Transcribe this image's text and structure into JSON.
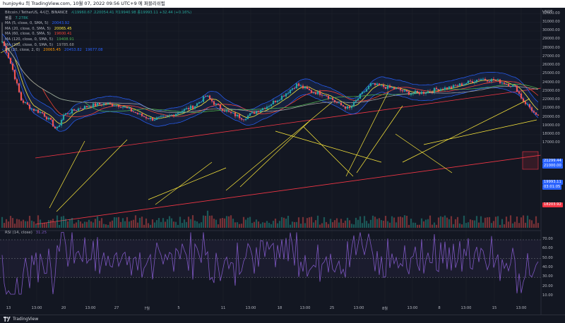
{
  "header": {
    "title": "hunjoy4u 의 TradingView.com, 10월 07, 2022 09:56 UTC+9 에 퍼블리쉬됨"
  },
  "symbol_line": {
    "name": "Bitcoin / TetherUS, 4시간, BINANCE",
    "ohlc": "시19960.67 고20054.41 저19940.98 종19993.11 +32.44 (+0.16%)"
  },
  "indicators": [
    {
      "name": "볼륨",
      "values": [
        "7.278K"
      ],
      "colors": [
        "#26a69a"
      ]
    },
    {
      "name": "MA (5, close, 0, SMA, 5)",
      "values": [
        "20043.92"
      ],
      "colors": [
        "#2962ff"
      ]
    },
    {
      "name": "MA (20, close, 0, SMA, 5)",
      "values": [
        "20065.45"
      ],
      "colors": [
        "#ffeb3b"
      ]
    },
    {
      "name": "MA (60, close, 0, SMA, 5)",
      "values": [
        "19600.41"
      ],
      "colors": [
        "#f44336"
      ]
    },
    {
      "name": "MA (120, close, 0, SMA, 5)",
      "values": [
        "19408.91"
      ],
      "colors": [
        "#4caf50"
      ]
    },
    {
      "name": "MA (200, close, 0, SMA, 5)",
      "values": [
        "19785.68"
      ],
      "colors": [
        "#9e9e9e"
      ]
    },
    {
      "name": "BB (20, close, 2, 0)",
      "values": [
        "20065.45",
        "20453.82",
        "19677.08"
      ],
      "colors": [
        "#ff9800",
        "#2962ff",
        "#2962ff"
      ]
    }
  ],
  "price_axis": {
    "currency": "USDT",
    "ticks": [
      "32000.00",
      "31000.00",
      "30000.00",
      "29000.00",
      "28000.00",
      "27000.00",
      "26000.00",
      "25000.00",
      "24000.00",
      "23000.00",
      "22000.00",
      "21000.00",
      "20000.00",
      "19000.00",
      "18000.00",
      "17000.00"
    ],
    "labels": [
      {
        "text": "21299.44",
        "color": "#2962ff"
      },
      {
        "text": "21000.00",
        "color": "#2962ff"
      },
      {
        "text": "19993.11",
        "color": "#2962ff"
      },
      {
        "text": "03:01:05",
        "color": "#2962ff"
      },
      {
        "text": "18203.92",
        "color": "#f23645"
      }
    ]
  },
  "rsi": {
    "title": "RSI (14, close)",
    "value": "31.25",
    "ticks": [
      "70.00",
      "60.00",
      "50.00",
      "40.00",
      "30.00",
      "20.00",
      "10.00"
    ]
  },
  "time_axis": [
    "13",
    "13:00",
    "20",
    "13:00",
    "27",
    "7월",
    "5",
    "11",
    "13:00",
    "18",
    "13:00",
    "25",
    "13:00",
    "8월",
    "13:00",
    "8",
    "13:00",
    "15",
    "13:00"
  ],
  "footer": {
    "brand": "TradingView"
  }
}
